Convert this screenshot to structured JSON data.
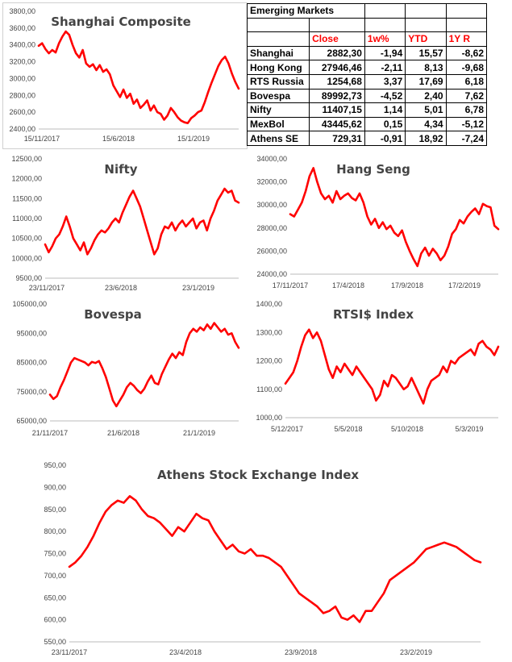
{
  "colors": {
    "series": "#ff0000",
    "title": "#444444",
    "header_red": "#ff0000"
  },
  "table": {
    "title": "Emerging Markets",
    "headers": [
      "",
      "Close",
      "1w%",
      "YTD",
      "1Y R"
    ],
    "rows": [
      {
        "name": "Shanghai",
        "close": "2882,30",
        "w": "-1,94",
        "ytd": "15,57",
        "y1": "-8,62"
      },
      {
        "name": "Hong Kong",
        "close": "27946,46",
        "w": "-2,11",
        "ytd": "8,13",
        "y1": "-9,68"
      },
      {
        "name": "RTS Russia",
        "close": "1254,68",
        "w": "3,37",
        "ytd": "17,69",
        "y1": "6,18"
      },
      {
        "name": "Bovespa",
        "close": "89992,73",
        "w": "-4,52",
        "ytd": "2,40",
        "y1": "7,62"
      },
      {
        "name": "Nifty",
        "close": "11407,15",
        "w": "1,14",
        "ytd": "5,01",
        "y1": "6,78"
      },
      {
        "name": "MexBol",
        "close": "43445,62",
        "w": "0,15",
        "ytd": "4,34",
        "y1": "-5,12"
      },
      {
        "name": "Athens SE",
        "close": "729,31",
        "w": "-0,91",
        "ytd": "18,92",
        "y1": "-7,24"
      }
    ]
  },
  "chart_data": [
    {
      "id": "shanghai",
      "type": "line",
      "title": "Shanghai Composite",
      "ylim": [
        2400,
        3800
      ],
      "yticks": [
        "2400,00",
        "2600,00",
        "2800,00",
        "3000,00",
        "3200,00",
        "3400,00",
        "3600,00",
        "3800,00"
      ],
      "xticks": [
        "15/11/2017",
        "15/6/2018",
        "15/1/2019"
      ],
      "series": [
        {
          "name": "Shanghai Composite",
          "values": [
            3390,
            3420,
            3350,
            3300,
            3340,
            3310,
            3420,
            3500,
            3560,
            3520,
            3400,
            3300,
            3250,
            3340,
            3180,
            3140,
            3170,
            3100,
            3160,
            3080,
            3110,
            3050,
            2920,
            2850,
            2780,
            2870,
            2770,
            2820,
            2700,
            2750,
            2650,
            2690,
            2740,
            2620,
            2680,
            2600,
            2580,
            2510,
            2560,
            2650,
            2600,
            2540,
            2500,
            2480,
            2470,
            2530,
            2560,
            2600,
            2620,
            2720,
            2840,
            2950,
            3050,
            3150,
            3220,
            3260,
            3180,
            3060,
            2960,
            2880
          ]
        }
      ]
    },
    {
      "id": "nifty",
      "type": "line",
      "title": "Nifty",
      "ylim": [
        9500,
        12500
      ],
      "yticks": [
        "9500,00",
        "10000,00",
        "10500,00",
        "11000,00",
        "11500,00",
        "12000,00",
        "12500,00"
      ],
      "xticks": [
        "23/11/2017",
        "23/6/2018",
        "23/1/2019"
      ],
      "series": [
        {
          "name": "Nifty",
          "values": [
            10350,
            10150,
            10300,
            10500,
            10600,
            10800,
            11050,
            10800,
            10500,
            10350,
            10200,
            10400,
            10100,
            10250,
            10450,
            10600,
            10700,
            10650,
            10750,
            10900,
            11000,
            10900,
            11150,
            11350,
            11550,
            11700,
            11500,
            11300,
            11000,
            10700,
            10400,
            10100,
            10250,
            10600,
            10800,
            10750,
            10900,
            10700,
            10850,
            10950,
            10800,
            10900,
            11000,
            10750,
            10900,
            10950,
            10700,
            11000,
            11200,
            11450,
            11600,
            11750,
            11650,
            11700,
            11450,
            11400
          ]
        }
      ]
    },
    {
      "id": "hangseng",
      "type": "line",
      "title": "Hang Seng",
      "ylim": [
        24000,
        34000
      ],
      "yticks": [
        "24000,00",
        "26000,00",
        "28000,00",
        "30000,00",
        "32000,00",
        "34000,00"
      ],
      "xticks": [
        "17/11/2017",
        "17/4/2018",
        "17/9/2018",
        "17/2/2019"
      ],
      "series": [
        {
          "name": "Hang Seng",
          "values": [
            29200,
            29000,
            29600,
            30200,
            31200,
            32500,
            33200,
            32000,
            31000,
            30500,
            30800,
            30200,
            31200,
            30500,
            30800,
            31000,
            30600,
            30400,
            31000,
            30200,
            29000,
            28300,
            28800,
            28000,
            28500,
            27900,
            28200,
            27600,
            27300,
            27800,
            26800,
            26000,
            25300,
            24700,
            25800,
            26300,
            25600,
            26200,
            25800,
            25200,
            25600,
            26400,
            27500,
            27900,
            28700,
            28400,
            29000,
            29400,
            29700,
            29200,
            30100,
            29900,
            29800,
            28200,
            27900
          ]
        }
      ]
    },
    {
      "id": "bovespa",
      "type": "line",
      "title": "Bovespa",
      "ylim": [
        65000,
        105000
      ],
      "yticks": [
        "65000,00",
        "75000,00",
        "85000,00",
        "95000,00",
        "105000,00"
      ],
      "xticks": [
        "21/11/2017",
        "21/6/2018",
        "21/1/2019"
      ],
      "series": [
        {
          "name": "Bovespa",
          "values": [
            74000,
            72500,
            73500,
            76500,
            79000,
            82000,
            85000,
            86500,
            86000,
            85500,
            85000,
            84000,
            85200,
            84800,
            85500,
            83000,
            80000,
            76000,
            72000,
            70000,
            72000,
            74000,
            76500,
            78000,
            77000,
            75500,
            74500,
            76000,
            78500,
            80500,
            78000,
            77500,
            81000,
            83500,
            86000,
            88000,
            86500,
            88500,
            87500,
            92000,
            95000,
            96500,
            95500,
            97000,
            96000,
            98000,
            96500,
            98500,
            97000,
            95500,
            96500,
            94500,
            95000,
            92000,
            90000
          ]
        }
      ]
    },
    {
      "id": "rts",
      "type": "line",
      "title": "RTSI$ Index",
      "ylim": [
        1000,
        1400
      ],
      "yticks": [
        "1000,00",
        "1100,00",
        "1200,00",
        "1300,00",
        "1400,00"
      ],
      "xticks": [
        "5/12/2017",
        "5/5/2018",
        "5/10/2018",
        "5/3/2019"
      ],
      "series": [
        {
          "name": "RTSI$ Index",
          "values": [
            1120,
            1140,
            1160,
            1200,
            1250,
            1290,
            1310,
            1280,
            1300,
            1270,
            1220,
            1170,
            1140,
            1180,
            1160,
            1190,
            1170,
            1150,
            1180,
            1160,
            1140,
            1120,
            1100,
            1060,
            1080,
            1130,
            1110,
            1150,
            1140,
            1120,
            1100,
            1110,
            1140,
            1110,
            1080,
            1050,
            1100,
            1130,
            1140,
            1150,
            1180,
            1160,
            1200,
            1190,
            1210,
            1220,
            1230,
            1240,
            1220,
            1260,
            1270,
            1250,
            1240,
            1220,
            1250
          ]
        }
      ]
    },
    {
      "id": "athens",
      "type": "line",
      "title": "Athens Stock Exchange Index",
      "ylim": [
        550,
        950
      ],
      "yticks": [
        "550,00",
        "600,00",
        "650,00",
        "700,00",
        "750,00",
        "800,00",
        "850,00",
        "900,00",
        "950,00"
      ],
      "xticks": [
        "23/11/2017",
        "23/4/2018",
        "23/9/2018",
        "23/2/2019"
      ],
      "series": [
        {
          "name": "Athens Stock Exchange Index",
          "values": [
            720,
            730,
            745,
            765,
            790,
            820,
            845,
            860,
            870,
            865,
            880,
            870,
            850,
            835,
            830,
            820,
            805,
            790,
            810,
            800,
            820,
            840,
            830,
            825,
            800,
            780,
            760,
            770,
            755,
            750,
            760,
            745,
            745,
            740,
            730,
            720,
            700,
            680,
            660,
            650,
            640,
            630,
            615,
            620,
            630,
            605,
            600,
            610,
            595,
            620,
            620,
            640,
            660,
            690,
            700,
            710,
            720,
            730,
            745,
            760,
            765,
            770,
            775,
            770,
            765,
            755,
            745,
            735,
            730
          ]
        }
      ]
    }
  ]
}
